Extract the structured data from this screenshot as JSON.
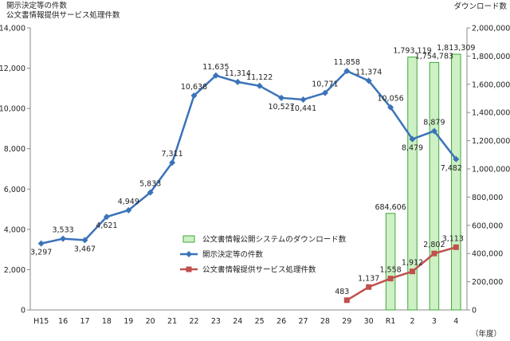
{
  "chart_data": {
    "type": "bar+line",
    "title_left": "開示決定等の件数\n公文書情報提供サービス処理件数",
    "title_right": "ダウンロード数",
    "xlabel": "（年度）",
    "categories": [
      "H15",
      "16",
      "17",
      "18",
      "19",
      "20",
      "21",
      "22",
      "23",
      "24",
      "25",
      "26",
      "27",
      "28",
      "29",
      "30",
      "R1",
      "2",
      "3",
      "4"
    ],
    "ylim_left": [
      0,
      14000
    ],
    "yticks_left": [
      "0",
      "2,000",
      "4,000",
      "6,000",
      "8,000",
      "10,000",
      "12,000",
      "14,000"
    ],
    "ylim_right": [
      0,
      2000000
    ],
    "yticks_right": [
      "0",
      "200,000",
      "400,000",
      "600,000",
      "800,000",
      "1,000,000",
      "1,200,000",
      "1,400,000",
      "1,600,000",
      "1,800,000",
      "2,000,000"
    ],
    "series": [
      {
        "name": "公文書情報公開システムのダウンロード数",
        "type": "bar",
        "axis": "right",
        "color": "#cdf0c4",
        "stroke": "#3fa83a",
        "values": [
          null,
          null,
          null,
          null,
          null,
          null,
          null,
          null,
          null,
          null,
          null,
          null,
          null,
          null,
          null,
          null,
          684606,
          1793119,
          1754783,
          1813309
        ],
        "labels": [
          "",
          "",
          "",
          "",
          "",
          "",
          "",
          "",
          "",
          "",
          "",
          "",
          "",
          "",
          "",
          "",
          "684,606",
          "1,793,119",
          "1,754,783",
          "1,813,309"
        ]
      },
      {
        "name": "開示決定等の件数",
        "type": "line",
        "axis": "left",
        "color": "#3b73b9",
        "values": [
          3297,
          3533,
          3467,
          4621,
          4949,
          5833,
          7311,
          10638,
          11635,
          11314,
          11122,
          10527,
          10441,
          10771,
          11858,
          11374,
          10056,
          8479,
          8879,
          7482
        ],
        "labels": [
          "3,297",
          "3,533",
          "3,467",
          "4,621",
          "4,949",
          "5,833",
          "7,311",
          "10,638",
          "11,635",
          "11,314",
          "11,122",
          "10,527",
          "10,441",
          "10,771",
          "11,858",
          "11,374",
          "10,056",
          "8,479",
          "8,879",
          "7,482"
        ]
      },
      {
        "name": "公文書情報提供サービス処理件数",
        "type": "line",
        "axis": "left",
        "color": "#c0504d",
        "values": [
          null,
          null,
          null,
          null,
          null,
          null,
          null,
          null,
          null,
          null,
          null,
          null,
          null,
          null,
          483,
          1137,
          1558,
          1912,
          2802,
          3113
        ],
        "labels": [
          "",
          "",
          "",
          "",
          "",
          "",
          "",
          "",
          "",
          "",
          "",
          "",
          "",
          "",
          "483",
          "1,137",
          "1,558",
          "1,912",
          "2,802",
          "3,113"
        ]
      }
    ],
    "grid": false,
    "legend_position": "lower-middle"
  }
}
